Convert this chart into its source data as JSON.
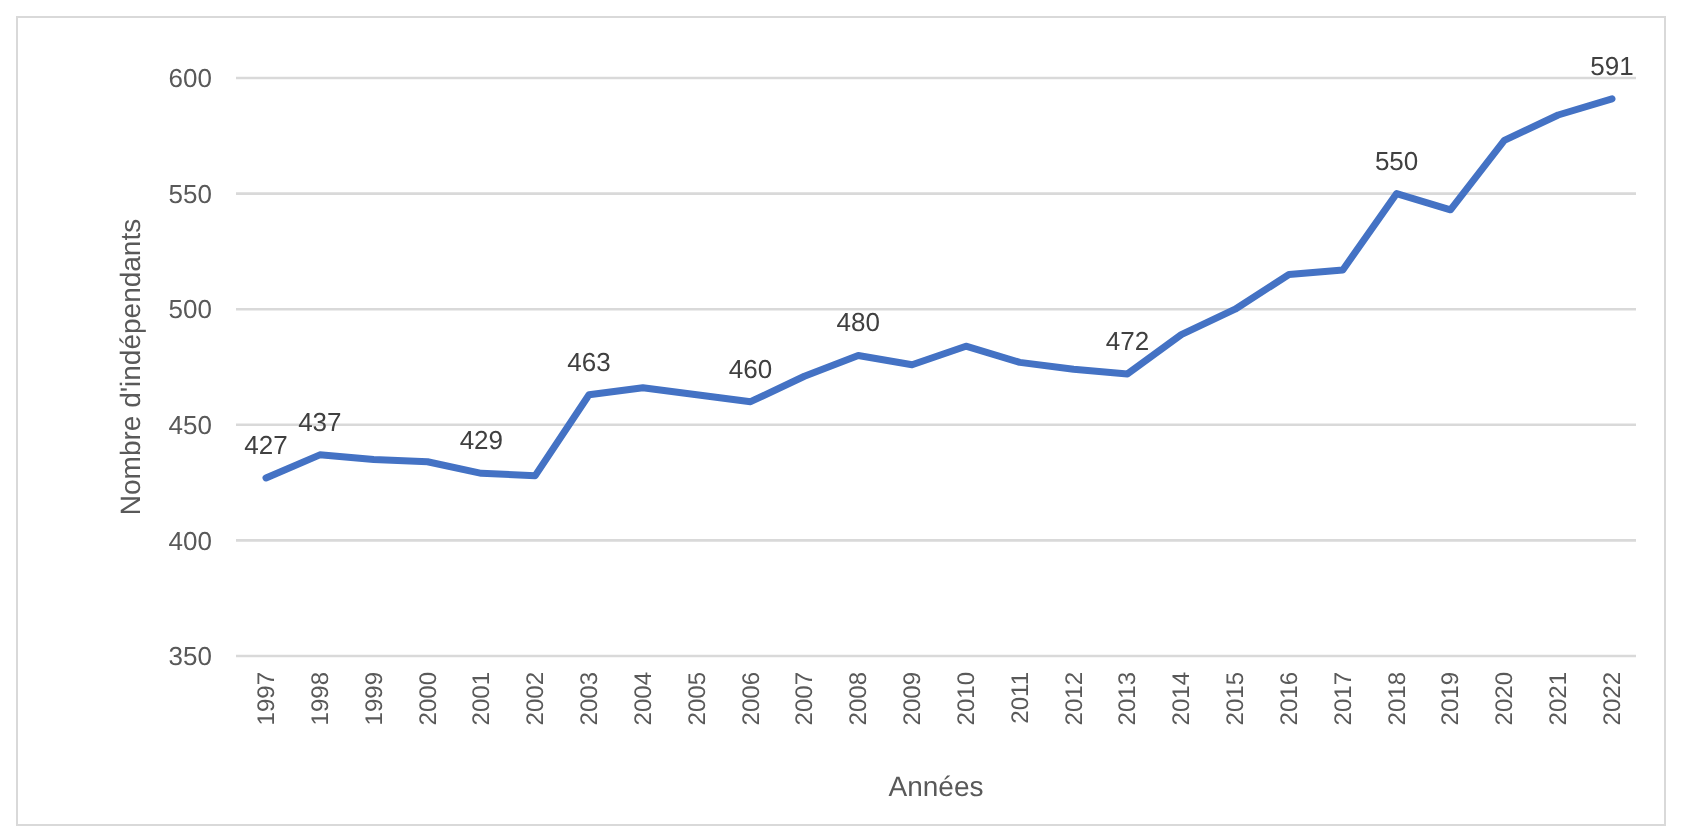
{
  "chart_data": {
    "type": "line",
    "xlabel": "Années",
    "ylabel": "Nombre d'indépendants",
    "categories": [
      "1997",
      "1998",
      "1999",
      "2000",
      "2001",
      "2002",
      "2003",
      "2004",
      "2005",
      "2006",
      "2007",
      "2008",
      "2009",
      "2010",
      "2011",
      "2012",
      "2013",
      "2014",
      "2015",
      "2016",
      "2017",
      "2018",
      "2019",
      "2020",
      "2021",
      "2022"
    ],
    "series": [
      {
        "color": "#4472c4",
        "values": [
          427,
          437,
          435,
          434,
          429,
          428,
          463,
          466,
          463,
          460,
          471,
          480,
          476,
          484,
          477,
          474,
          472,
          489,
          500,
          515,
          517,
          550,
          543,
          573,
          584,
          591
        ],
        "value_labels": [
          "427",
          "437",
          null,
          null,
          "429",
          null,
          "463",
          null,
          null,
          "460",
          null,
          "480",
          null,
          null,
          null,
          null,
          "472",
          null,
          null,
          null,
          null,
          "550",
          null,
          null,
          null,
          "591"
        ]
      }
    ],
    "ylim": [
      350,
      600
    ],
    "yticks": [
      350,
      400,
      450,
      500,
      550,
      600
    ],
    "grid": "y",
    "marker": "none",
    "line_style": "solid"
  }
}
